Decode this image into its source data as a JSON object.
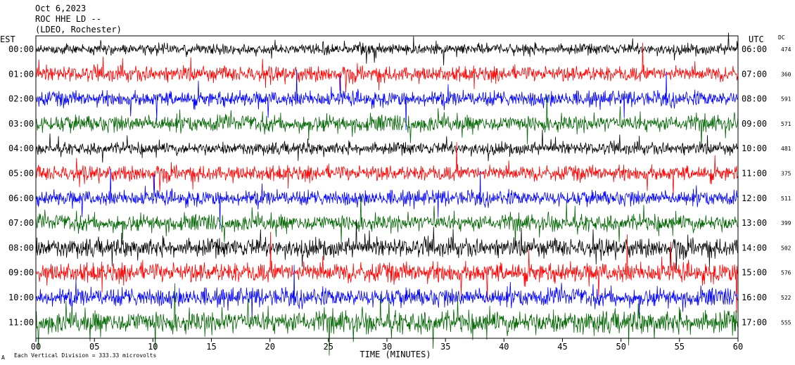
{
  "header": {
    "date": "Oct 6,2023",
    "station": "ROC HHE LD --",
    "network": "(LDEO, Rochester)"
  },
  "axis_left_label": "EST",
  "axis_right_label": "UTC",
  "dc_label": "DC",
  "footer_note": "Each Vertical Division = 333.33 microvolts",
  "footer_mark": "A",
  "chart_data": {
    "type": "line",
    "title": "",
    "xlabel": "TIME (MINUTES)",
    "ylabel": "",
    "xlim": [
      0,
      60
    ],
    "x_ticks": [
      "00",
      "05",
      "10",
      "15",
      "20",
      "25",
      "30",
      "35",
      "40",
      "45",
      "50",
      "55",
      "60"
    ],
    "trace_colors": [
      "#000000",
      "#ff0000",
      "#0000ff",
      "#006400"
    ],
    "rows": [
      {
        "est": "00:00",
        "utc": "06:00",
        "dc": "474",
        "color": "#000000",
        "activity": 0.7
      },
      {
        "est": "01:00",
        "utc": "07:00",
        "dc": "360",
        "color": "#ff0000",
        "activity": 1.0
      },
      {
        "est": "02:00",
        "utc": "08:00",
        "dc": "591",
        "color": "#0000ff",
        "activity": 1.0
      },
      {
        "est": "03:00",
        "utc": "09:00",
        "dc": "571",
        "color": "#006400",
        "activity": 1.1
      },
      {
        "est": "04:00",
        "utc": "10:00",
        "dc": "481",
        "color": "#000000",
        "activity": 0.8
      },
      {
        "est": "05:00",
        "utc": "11:00",
        "dc": "375",
        "color": "#ff0000",
        "activity": 1.0
      },
      {
        "est": "06:00",
        "utc": "12:00",
        "dc": "511",
        "color": "#0000ff",
        "activity": 1.0
      },
      {
        "est": "07:00",
        "utc": "13:00",
        "dc": "399",
        "color": "#006400",
        "activity": 1.1
      },
      {
        "est": "08:00",
        "utc": "14:00",
        "dc": "502",
        "color": "#000000",
        "activity": 1.2
      },
      {
        "est": "09:00",
        "utc": "15:00",
        "dc": "576",
        "color": "#ff0000",
        "activity": 1.3
      },
      {
        "est": "10:00",
        "utc": "16:00",
        "dc": "522",
        "color": "#0000ff",
        "activity": 1.2
      },
      {
        "est": "11:00",
        "utc": "17:00",
        "dc": "555",
        "color": "#006400",
        "activity": 1.5
      }
    ]
  }
}
